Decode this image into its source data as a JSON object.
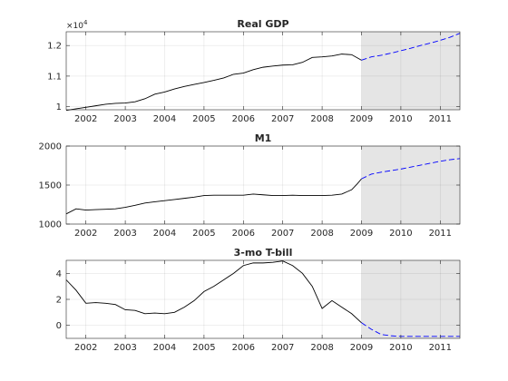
{
  "figure": {
    "background": "#ffffff",
    "forecast_shade": "#e5e5e5",
    "history_color": "#000000",
    "forecast_color": "#0000ff"
  },
  "chart_data": [
    {
      "type": "line",
      "title": "Real GDP",
      "xlabel": "",
      "ylabel": "",
      "exponent_label": "×10^4",
      "exponent_base": "×10",
      "exponent_power": "4",
      "xlim": [
        2001.5,
        2011.5
      ],
      "ylim": [
        0.99,
        1.245
      ],
      "x_ticks": [
        2002,
        2003,
        2004,
        2005,
        2006,
        2007,
        2008,
        2009,
        2010,
        2011
      ],
      "x_tick_labels": [
        "2002",
        "2003",
        "2004",
        "2005",
        "2006",
        "2007",
        "2008",
        "2009",
        "2010",
        "2011"
      ],
      "y_ticks": [
        1.0,
        1.1,
        1.2
      ],
      "y_tick_labels": [
        "1",
        "1.1",
        "1.2"
      ],
      "grid": true,
      "forecast_region": [
        2009.0,
        2011.5
      ],
      "series": [
        {
          "style": "solid",
          "color": "#000000",
          "x": [
            2001.5,
            2001.75,
            2002.0,
            2002.25,
            2002.5,
            2002.75,
            2003.0,
            2003.25,
            2003.5,
            2003.75,
            2004.0,
            2004.25,
            2004.5,
            2004.75,
            2005.0,
            2005.25,
            2005.5,
            2005.75,
            2006.0,
            2006.25,
            2006.5,
            2006.75,
            2007.0,
            2007.25,
            2007.5,
            2007.75,
            2008.0,
            2008.25,
            2008.5,
            2008.75,
            2009.0
          ],
          "y": [
            0.988,
            0.993,
            0.998,
            1.003,
            1.008,
            1.011,
            1.012,
            1.016,
            1.026,
            1.041,
            1.048,
            1.058,
            1.066,
            1.073,
            1.079,
            1.086,
            1.094,
            1.106,
            1.11,
            1.121,
            1.129,
            1.133,
            1.136,
            1.137,
            1.145,
            1.161,
            1.163,
            1.166,
            1.172,
            1.17,
            1.152
          ]
        },
        {
          "style": "dashed",
          "color": "#0000ff",
          "x": [
            2009.0,
            2009.25,
            2009.5,
            2009.75,
            2010.0,
            2010.25,
            2010.5,
            2010.75,
            2011.0,
            2011.25,
            2011.5
          ],
          "y": [
            1.152,
            1.163,
            1.168,
            1.175,
            1.183,
            1.191,
            1.2,
            1.208,
            1.217,
            1.227,
            1.24
          ]
        }
      ]
    },
    {
      "type": "line",
      "title": "M1",
      "xlabel": "",
      "ylabel": "",
      "xlim": [
        2001.5,
        2011.5
      ],
      "ylim": [
        1000,
        2000
      ],
      "x_ticks": [
        2002,
        2003,
        2004,
        2005,
        2006,
        2007,
        2008,
        2009,
        2010,
        2011
      ],
      "x_tick_labels": [
        "2002",
        "2003",
        "2004",
        "2005",
        "2006",
        "2007",
        "2008",
        "2009",
        "2010",
        "2011"
      ],
      "y_ticks": [
        1000,
        1500,
        2000
      ],
      "y_tick_labels": [
        "1000",
        "1500",
        "2000"
      ],
      "grid": true,
      "forecast_region": [
        2009.0,
        2011.5
      ],
      "series": [
        {
          "style": "solid",
          "color": "#000000",
          "x": [
            2001.5,
            2001.75,
            2002.0,
            2002.25,
            2002.5,
            2002.75,
            2003.0,
            2003.25,
            2003.5,
            2003.75,
            2004.0,
            2004.25,
            2004.5,
            2004.75,
            2005.0,
            2005.25,
            2005.5,
            2005.75,
            2006.0,
            2006.25,
            2006.5,
            2006.75,
            2007.0,
            2007.25,
            2007.5,
            2007.75,
            2008.0,
            2008.25,
            2008.5,
            2008.75,
            2008.9,
            2009.0
          ],
          "y": [
            1130,
            1195,
            1180,
            1185,
            1190,
            1195,
            1215,
            1240,
            1270,
            1285,
            1300,
            1315,
            1330,
            1345,
            1365,
            1370,
            1370,
            1370,
            1370,
            1385,
            1375,
            1365,
            1365,
            1370,
            1365,
            1365,
            1365,
            1370,
            1385,
            1440,
            1520,
            1580
          ]
        },
        {
          "style": "dashed",
          "color": "#0000ff",
          "x": [
            2009.0,
            2009.25,
            2009.5,
            2009.75,
            2010.0,
            2010.25,
            2010.5,
            2010.75,
            2011.0,
            2011.25,
            2011.5
          ],
          "y": [
            1580,
            1640,
            1665,
            1685,
            1705,
            1730,
            1755,
            1780,
            1805,
            1825,
            1840
          ]
        }
      ]
    },
    {
      "type": "line",
      "title": "3-mo T-bill",
      "xlabel": "",
      "ylabel": "",
      "xlim": [
        2001.5,
        2011.5
      ],
      "ylim": [
        -1.0,
        5.0
      ],
      "x_ticks": [
        2002,
        2003,
        2004,
        2005,
        2006,
        2007,
        2008,
        2009,
        2010,
        2011
      ],
      "x_tick_labels": [
        "2002",
        "2003",
        "2004",
        "2005",
        "2006",
        "2007",
        "2008",
        "2009",
        "2010",
        "2011"
      ],
      "y_ticks": [
        0,
        2,
        4
      ],
      "y_tick_labels": [
        "0",
        "2",
        "4"
      ],
      "grid": true,
      "forecast_region": [
        2009.0,
        2011.5
      ],
      "series": [
        {
          "style": "solid",
          "color": "#000000",
          "x": [
            2001.5,
            2001.75,
            2002.0,
            2002.25,
            2002.5,
            2002.75,
            2003.0,
            2003.25,
            2003.5,
            2003.75,
            2004.0,
            2004.25,
            2004.5,
            2004.75,
            2005.0,
            2005.25,
            2005.5,
            2005.75,
            2006.0,
            2006.25,
            2006.5,
            2006.75,
            2007.0,
            2007.25,
            2007.5,
            2007.75,
            2008.0,
            2008.25,
            2008.5,
            2008.75,
            2009.0
          ],
          "y": [
            3.5,
            2.7,
            1.7,
            1.75,
            1.7,
            1.6,
            1.2,
            1.15,
            0.9,
            0.95,
            0.9,
            1.0,
            1.4,
            1.9,
            2.6,
            3.0,
            3.5,
            4.0,
            4.6,
            4.8,
            4.8,
            4.85,
            4.95,
            4.6,
            4.0,
            3.0,
            1.3,
            1.9,
            1.4,
            0.9,
            0.2
          ]
        },
        {
          "style": "dashed",
          "color": "#0000ff",
          "x": [
            2009.0,
            2009.25,
            2009.5,
            2009.75,
            2010.0,
            2010.25,
            2010.5,
            2010.75,
            2011.0,
            2011.25,
            2011.5
          ],
          "y": [
            0.2,
            -0.3,
            -0.7,
            -0.8,
            -0.85,
            -0.85,
            -0.85,
            -0.85,
            -0.85,
            -0.85,
            -0.85
          ]
        }
      ]
    }
  ]
}
